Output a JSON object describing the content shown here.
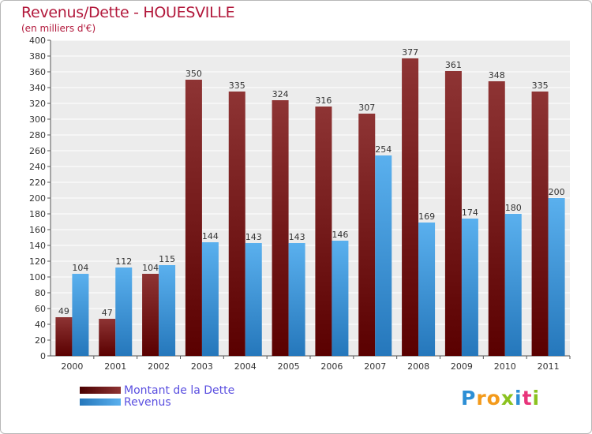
{
  "title": "Revenus/Dette - HOUESVILLE",
  "subtitle": "(en milliers d'€)",
  "logo": {
    "letters": [
      "P",
      "r",
      "o",
      "x",
      "i",
      "t",
      "i"
    ],
    "colors": [
      "#2d8fd5",
      "#f39a1b",
      "#f39a1b",
      "#8bc21f",
      "#2d8fd5",
      "#e8347a",
      "#8bc21f"
    ]
  },
  "chart_data": {
    "type": "bar",
    "categories": [
      "2000",
      "2001",
      "2002",
      "2003",
      "2004",
      "2005",
      "2006",
      "2007",
      "2008",
      "2009",
      "2010",
      "2011"
    ],
    "series": [
      {
        "name": "Montant de la Dette",
        "color": "#7a1a1a",
        "values": [
          49,
          47,
          104,
          350,
          335,
          324,
          316,
          307,
          377,
          361,
          348,
          335
        ]
      },
      {
        "name": "Revenus",
        "color": "#3a9ee6",
        "values": [
          104,
          112,
          115,
          144,
          143,
          143,
          146,
          254,
          169,
          174,
          180,
          200
        ]
      }
    ],
    "ylim": [
      0,
      400
    ],
    "ytick_step": 20,
    "grid": true,
    "legend_position": "bottom-left"
  }
}
